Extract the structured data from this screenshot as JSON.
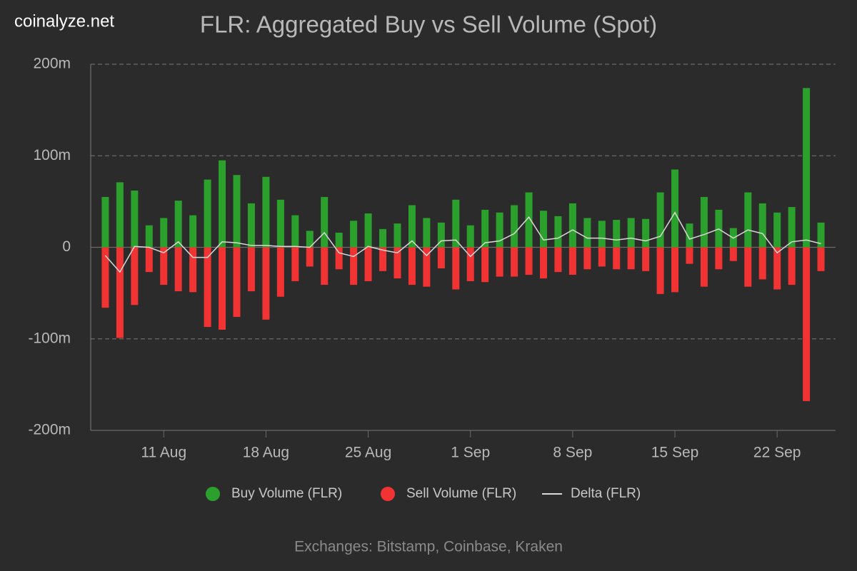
{
  "watermark": "coinalyze.net",
  "chart_data": {
    "type": "bar",
    "title": "FLR: Aggregated Buy vs Sell Volume (Spot)",
    "categories": [
      null,
      null,
      null,
      null,
      "11 Aug",
      null,
      null,
      null,
      null,
      null,
      null,
      "18 Aug",
      null,
      null,
      null,
      null,
      null,
      null,
      "25 Aug",
      null,
      null,
      null,
      null,
      null,
      null,
      "1 Sep",
      null,
      null,
      null,
      null,
      null,
      null,
      "8 Sep",
      null,
      null,
      null,
      null,
      null,
      null,
      "15 Sep",
      null,
      null,
      null,
      null,
      null,
      null,
      "22 Sep",
      null,
      null,
      null
    ],
    "series": [
      {
        "name": "Buy Volume (FLR)",
        "type": "bar",
        "color": "#2ca02c",
        "values": [
          55,
          71,
          62,
          24,
          32,
          51,
          35,
          74,
          95,
          79,
          48,
          77,
          52,
          35,
          18,
          55,
          16,
          29,
          37,
          20,
          26,
          46,
          32,
          27,
          52,
          24,
          41,
          38,
          46,
          60,
          40,
          34,
          48,
          32,
          29,
          30,
          32,
          31,
          60,
          85,
          26,
          55,
          41,
          21,
          60,
          48,
          38,
          44,
          174,
          27
        ]
      },
      {
        "name": "Sell Volume (FLR)",
        "type": "bar",
        "color": "#f23333",
        "values": [
          -66,
          -99,
          -63,
          -27,
          -41,
          -48,
          -49,
          -87,
          -90,
          -76,
          -48,
          -79,
          -54,
          -37,
          -21,
          -41,
          -24,
          -41,
          -37,
          -26,
          -34,
          -41,
          -43,
          -23,
          -46,
          -37,
          -38,
          -32,
          -32,
          -30,
          -34,
          -27,
          -30,
          -24,
          -21,
          -24,
          -24,
          -26,
          -51,
          -49,
          -18,
          -43,
          -24,
          -15,
          -43,
          -35,
          -46,
          -41,
          -168,
          -26
        ]
      },
      {
        "name": "Delta (FLR)",
        "type": "line",
        "color": "#d9d9d9",
        "values": [
          -9,
          -27,
          1,
          0,
          -6,
          6,
          -11,
          -11,
          6,
          5,
          2,
          2,
          1,
          1,
          0,
          16,
          -6,
          -10,
          1,
          -3,
          -6,
          7,
          -9,
          7,
          8,
          -10,
          5,
          7,
          15,
          33,
          8,
          10,
          19,
          10,
          10,
          8,
          10,
          7,
          12,
          38,
          9,
          14,
          20,
          10,
          19,
          15,
          -6,
          6,
          8,
          4
        ]
      }
    ],
    "ylim": [
      -200,
      200
    ],
    "yticks": [
      {
        "value": -200,
        "label": "-200m"
      },
      {
        "value": -100,
        "label": "-100m"
      },
      0,
      {
        "value": 100,
        "label": "100m"
      },
      {
        "value": 200,
        "label": "200m"
      }
    ],
    "grid": true,
    "legend": "bottom",
    "caption": "Exchanges: Bitstamp, Coinbase, Kraken"
  }
}
